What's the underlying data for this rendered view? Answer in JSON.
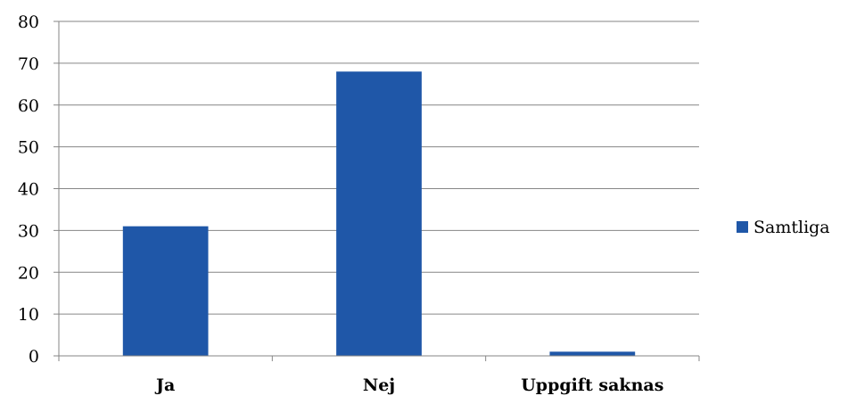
{
  "chart_data": {
    "type": "bar",
    "categories": [
      "Ja",
      "Nej",
      "Uppgift saknas"
    ],
    "series": [
      {
        "name": "Samtliga",
        "values": [
          31,
          68,
          1
        ],
        "color": "#1f57a8"
      }
    ],
    "yticks": [
      "0",
      "10",
      "20",
      "30",
      "40",
      "50",
      "60",
      "70",
      "80"
    ],
    "ylim": [
      0,
      80
    ],
    "grid": true,
    "legend_position": "right",
    "gridline_color": "#868686",
    "title": "",
    "xlabel": "",
    "ylabel": ""
  }
}
